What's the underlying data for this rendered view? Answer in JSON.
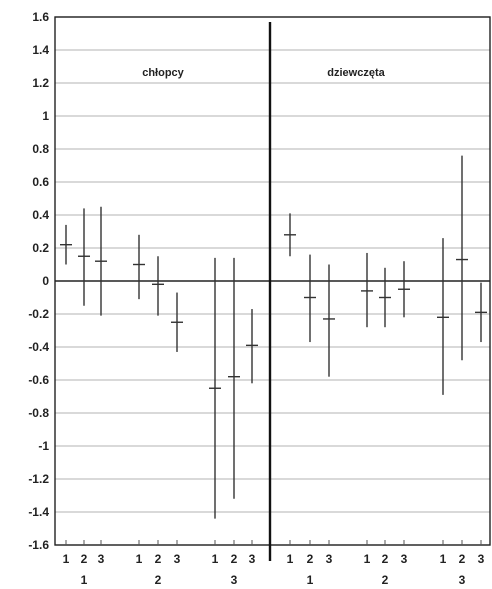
{
  "chart_data": {
    "type": "errorbar",
    "title": "",
    "xlabel": "",
    "ylabel": "",
    "ylim": [
      -1.6,
      1.6
    ],
    "yticks": [
      "1.6",
      "1.4",
      "1.2",
      "1",
      "0.8",
      "0.6",
      "0.4",
      "0.2",
      "0",
      "-0.2",
      "-0.4",
      "-0.6",
      "-0.8",
      "-1",
      "-1.2",
      "-1.4",
      "-1.6"
    ],
    "grid": true,
    "panels": [
      {
        "name": "chłopcy",
        "groups": [
          {
            "label": "1",
            "categories": [
              "1",
              "2",
              "3"
            ],
            "mean": [
              0.22,
              0.15,
              0.12
            ],
            "low": [
              0.1,
              -0.15,
              -0.21
            ],
            "high": [
              0.34,
              0.44,
              0.45
            ]
          },
          {
            "label": "2",
            "categories": [
              "1",
              "2",
              "3"
            ],
            "mean": [
              0.1,
              -0.02,
              -0.25
            ],
            "low": [
              -0.11,
              -0.21,
              -0.43
            ],
            "high": [
              0.28,
              0.15,
              -0.07
            ]
          },
          {
            "label": "3",
            "categories": [
              "1",
              "2",
              "3"
            ],
            "mean": [
              -0.65,
              -0.58,
              -0.39
            ],
            "low": [
              -1.44,
              -1.32,
              -0.62
            ],
            "high": [
              0.14,
              0.14,
              -0.17
            ]
          }
        ]
      },
      {
        "name": "dziewczęta",
        "groups": [
          {
            "label": "1",
            "categories": [
              "1",
              "2",
              "3"
            ],
            "mean": [
              0.28,
              -0.1,
              -0.23
            ],
            "low": [
              0.15,
              -0.37,
              -0.58
            ],
            "high": [
              0.41,
              0.16,
              0.1
            ]
          },
          {
            "label": "2",
            "categories": [
              "1",
              "2",
              "3"
            ],
            "mean": [
              -0.06,
              -0.1,
              -0.05
            ],
            "low": [
              -0.28,
              -0.28,
              -0.22
            ],
            "high": [
              0.17,
              0.08,
              0.12
            ]
          },
          {
            "label": "3",
            "categories": [
              "1",
              "2",
              "3"
            ],
            "mean": [
              -0.22,
              0.13,
              -0.19
            ],
            "low": [
              -0.69,
              -0.48,
              -0.37
            ],
            "high": [
              0.26,
              0.76,
              -0.01
            ]
          }
        ]
      }
    ]
  }
}
